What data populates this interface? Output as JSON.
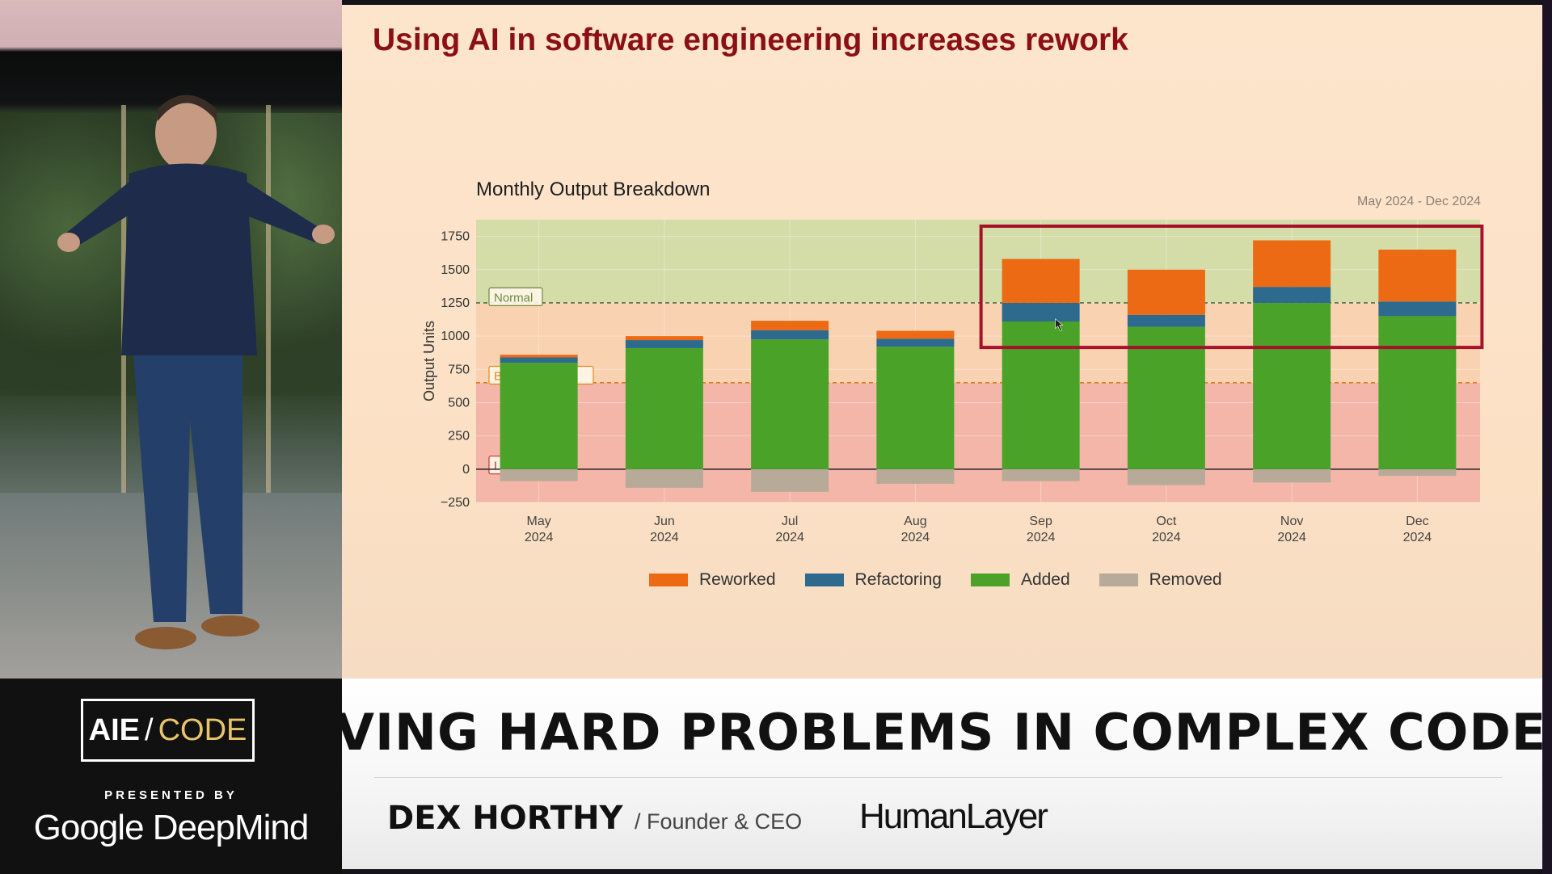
{
  "slide": {
    "title": "Using AI in software engineering increases rework"
  },
  "chart_data": {
    "type": "bar",
    "title": "Monthly Output Breakdown",
    "subtitle": "May 2024 - Dec 2024",
    "ylabel": "Output Units",
    "xlabel": "",
    "ylim": [
      -250,
      1875
    ],
    "yticks": [
      -250,
      0,
      250,
      500,
      750,
      1000,
      1250,
      1500,
      1750
    ],
    "stacked": true,
    "categories": [
      "May\n2024",
      "Jun\n2024",
      "Jul\n2024",
      "Aug\n2024",
      "Sep\n2024",
      "Oct\n2024",
      "Nov\n2024",
      "Dec\n2024"
    ],
    "series": [
      {
        "name": "Added",
        "color": "#4aa328",
        "values": [
          800,
          910,
          975,
          920,
          1110,
          1070,
          1250,
          1150
        ]
      },
      {
        "name": "Refactoring",
        "color": "#2d6a8e",
        "values": [
          40,
          60,
          70,
          60,
          140,
          90,
          120,
          110
        ]
      },
      {
        "name": "Reworked",
        "color": "#ec6a14",
        "values": [
          20,
          30,
          70,
          60,
          330,
          340,
          350,
          390
        ]
      },
      {
        "name": "Removed",
        "color": "#b8aa99",
        "values": [
          -90,
          -140,
          -170,
          -110,
          -90,
          -120,
          -100,
          -50
        ]
      }
    ],
    "legend_order": [
      "Reworked",
      "Refactoring",
      "Added",
      "Removed"
    ],
    "legend_position": "bottom",
    "bands": [
      {
        "label": "Low",
        "from": -250,
        "to": 650,
        "color": "#f3b6a8",
        "label_color": "#c0392b"
      },
      {
        "label": "Below Average",
        "from": 650,
        "to": 1250,
        "color": "#f9d2b1",
        "label_color": "#e08a1e"
      },
      {
        "label": "Normal",
        "from": 1250,
        "to": 1875,
        "color": "#d4dca8",
        "label_color": "#6d8a3e"
      }
    ],
    "thresholds": [
      {
        "value": 650,
        "color": "#e07b1f"
      },
      {
        "value": 1250,
        "color": "#5b6b45"
      }
    ],
    "highlight": {
      "from_category": "Sep\n2024",
      "to_category": "Dec\n2024",
      "color": "#a5122a"
    },
    "grid": true
  },
  "lower_third": {
    "talk_title": "VING HARD PROBLEMS IN COMPLEX CODEBASE",
    "speaker_name": "DEX HORTHY",
    "speaker_role": "/ Founder & CEO",
    "company": "HumanLayer"
  },
  "branding": {
    "event_left": "AIE",
    "event_sep": "/",
    "event_right": "CODE",
    "presented_by": "PRESENTED BY",
    "sponsor": "Google DeepMind"
  }
}
